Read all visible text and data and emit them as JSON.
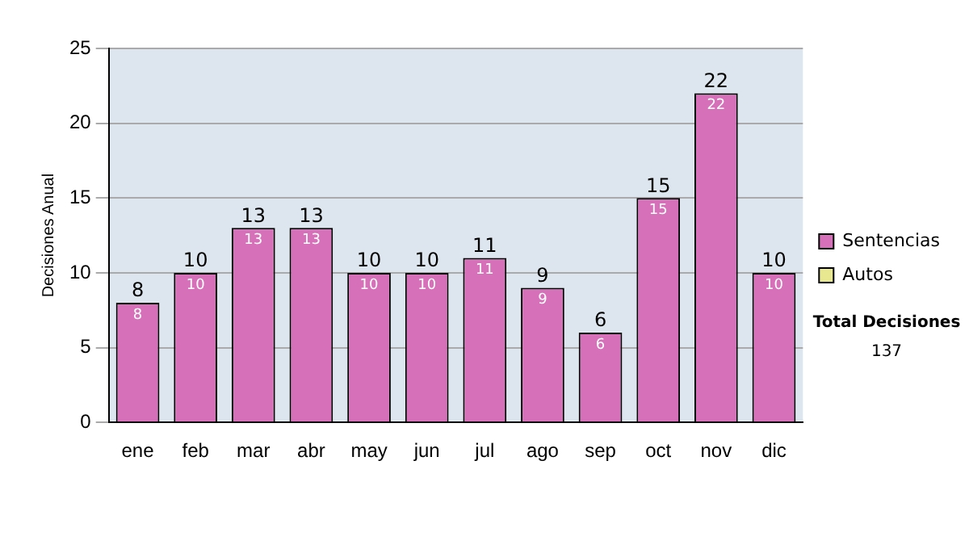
{
  "chart_data": {
    "type": "bar",
    "stacked": true,
    "ylabel": "Decisiones Anual",
    "categories": [
      "ene",
      "feb",
      "mar",
      "abr",
      "may",
      "jun",
      "jul",
      "ago",
      "sep",
      "oct",
      "nov",
      "dic"
    ],
    "series": [
      {
        "name": "Sentencias",
        "color": "#d670b8",
        "values": [
          8,
          10,
          13,
          13,
          10,
          10,
          11,
          9,
          6,
          15,
          22,
          10
        ],
        "value_labels": [
          "8",
          "10",
          "13",
          "13",
          "10",
          "10",
          "11",
          "9",
          "6",
          "15",
          "22",
          "10"
        ]
      },
      {
        "name": "Autos",
        "color": "#e8e890",
        "values": [
          0,
          0,
          0,
          0,
          0,
          0,
          0,
          0,
          0,
          0,
          0,
          0
        ]
      }
    ],
    "totals": [
      "8",
      "10",
      "13",
      "13",
      "10",
      "10",
      "11",
      "9",
      "6",
      "15",
      "22",
      "10"
    ],
    "ylim": [
      0,
      25
    ],
    "yticks": [
      0,
      5,
      10,
      15,
      20,
      25
    ],
    "grid": "y",
    "legend": "right",
    "annotations": [
      "Total Decisiones",
      "137"
    ]
  }
}
